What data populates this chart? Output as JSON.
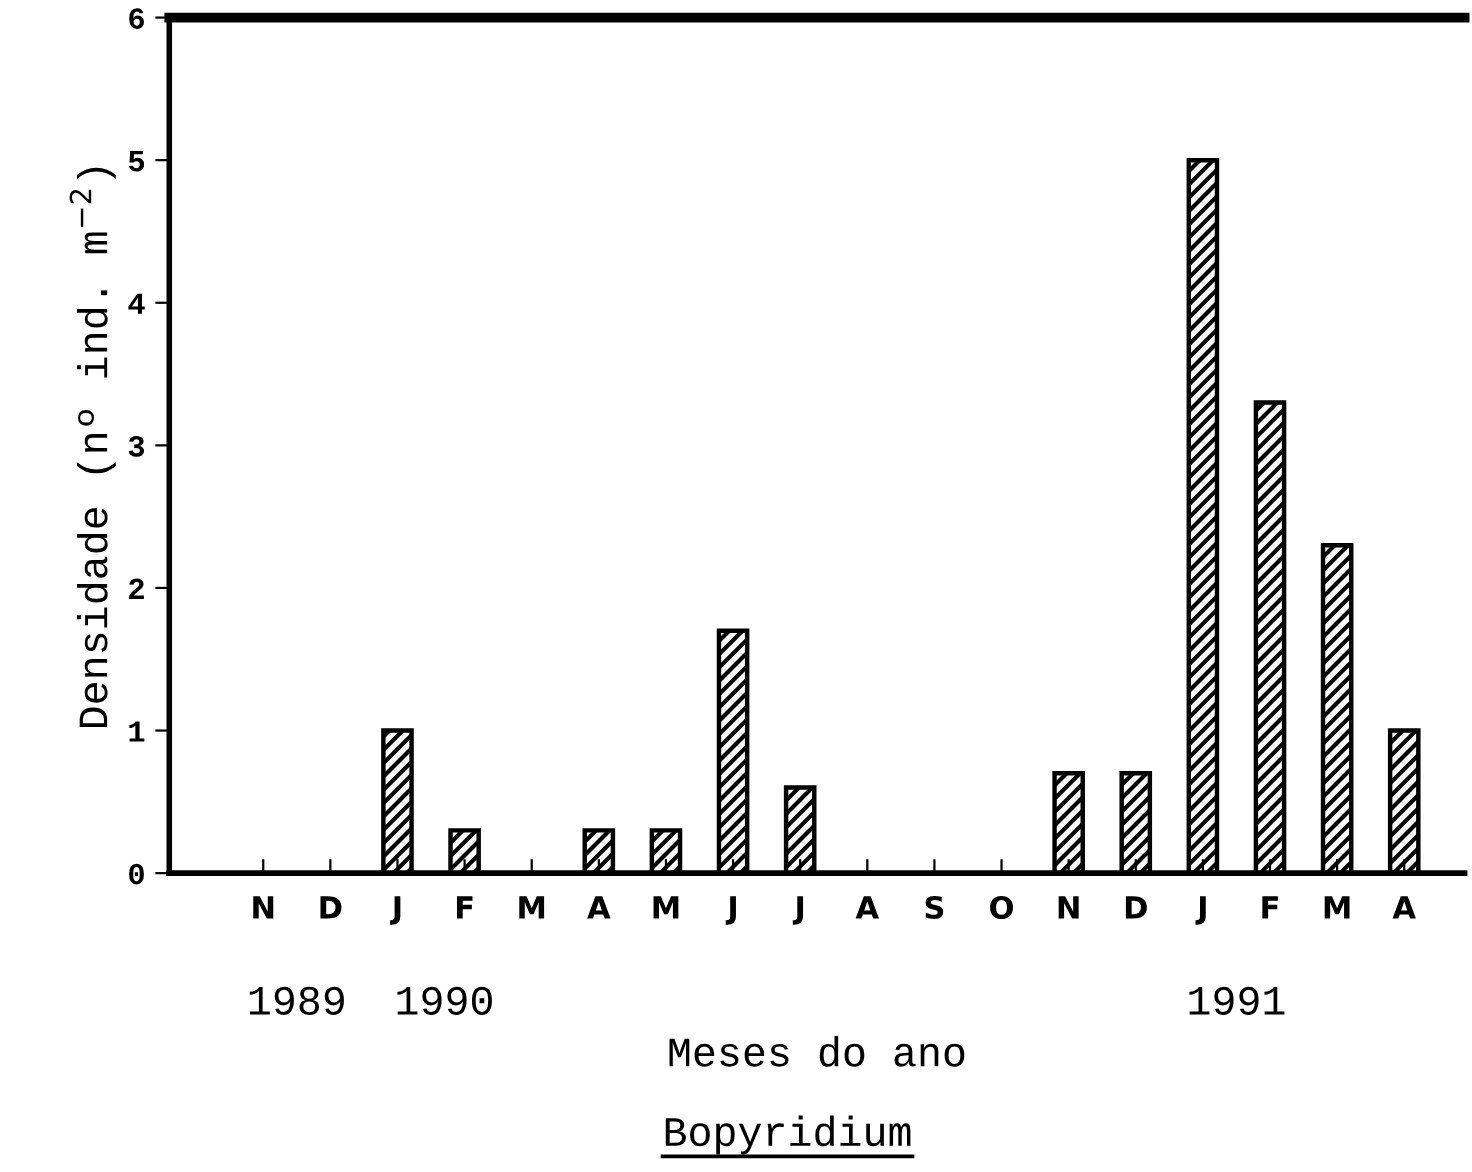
{
  "chart_data": {
    "type": "bar",
    "title": "Bopyridium",
    "xlabel": "Meses do ano",
    "ylabel": "Densidade (nº ind. m$^{−2}$)",
    "categories": [
      "N",
      "D",
      "J",
      "F",
      "M",
      "A",
      "M",
      "J",
      "J",
      "A",
      "S",
      "O",
      "N",
      "D",
      "J",
      "F",
      "M",
      "A"
    ],
    "values": [
      0,
      0,
      1.0,
      0.3,
      0,
      0.3,
      0.3,
      1.7,
      0.6,
      0,
      0,
      0,
      0.7,
      0.7,
      5.0,
      3.3,
      2.3,
      1.0
    ],
    "color": "#000000",
    "ylim": [
      0,
      6
    ],
    "yticks": [
      0,
      1,
      2,
      3,
      4,
      5,
      6
    ],
    "annotations": [
      "1989",
      "1990",
      "1991"
    ],
    "grid": false
  }
}
